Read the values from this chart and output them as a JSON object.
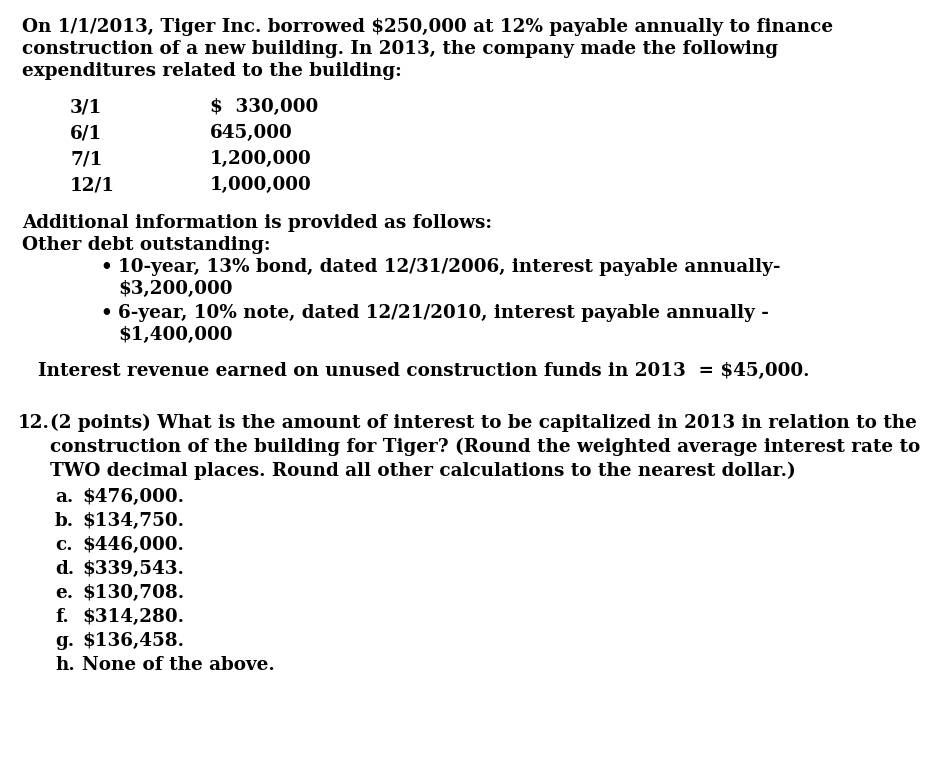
{
  "bg_color": "#ffffff",
  "text_color": "#000000",
  "font_family": "DejaVu Serif",
  "paragraph1_line1": "On 1/1/2013, Tiger Inc. borrowed $250,000 at 12% payable annually to finance",
  "paragraph1_line2": "construction of a new building. In 2013, the company made the following",
  "paragraph1_line3": "expenditures related to the building:",
  "expenditures": [
    [
      "3/1",
      "$  330,000"
    ],
    [
      "6/1",
      "645,000"
    ],
    [
      "7/1",
      "1,200,000"
    ],
    [
      "12/1",
      "1,000,000"
    ]
  ],
  "additional_info_line1": "Additional information is provided as follows:",
  "additional_info_line2": "Other debt outstanding:",
  "bullet1_line1": "10-year, 13% bond, dated 12/31/2006, interest payable annually-",
  "bullet1_line2": "$3,200,000",
  "bullet2_line1": "6-year, 10% note, dated 12/21/2010, interest payable annually -",
  "bullet2_line2": "$1,400,000",
  "interest_revenue": "Interest revenue earned on unused construction funds in 2013  = $45,000.",
  "question_number": "12.",
  "question_part1": "(2 points) What is the amount of interest to be capitalized in 2013 in relation to the",
  "question_part2": "construction of the building for Tiger? (Round the weighted average interest rate to",
  "question_part3": "TWO decimal places. Round all other calculations to the nearest dollar.)",
  "choices": [
    [
      "a.",
      "$476,000."
    ],
    [
      "b.",
      "$134,750."
    ],
    [
      "c.",
      "$446,000."
    ],
    [
      "d.",
      "$339,543."
    ],
    [
      "e.",
      "$130,708."
    ],
    [
      "f.",
      "$314,280."
    ],
    [
      "g.",
      "$136,458."
    ],
    [
      "h.",
      "None of the above."
    ]
  ],
  "font_size": 13.2
}
